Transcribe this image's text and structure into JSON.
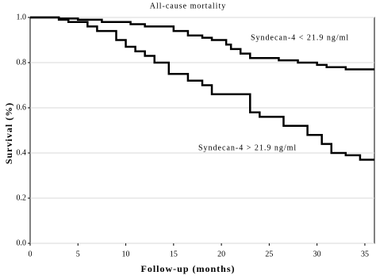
{
  "chart_data": {
    "type": "step",
    "title": "All-cause mortality",
    "xlabel": "Follow-up (months)",
    "ylabel": "Survival (%)",
    "series": [
      {
        "name": "Syndecan-4 < 21.9 ng/ml",
        "color": "#000000",
        "x": [
          0,
          3,
          5,
          7.5,
          10.5,
          12,
          15,
          16.5,
          18,
          19,
          20.5,
          21,
          22,
          23,
          26,
          28,
          30,
          31,
          33,
          36
        ],
        "values": [
          1.0,
          0.995,
          0.99,
          0.98,
          0.97,
          0.96,
          0.94,
          0.92,
          0.91,
          0.9,
          0.88,
          0.86,
          0.84,
          0.82,
          0.81,
          0.8,
          0.79,
          0.78,
          0.77,
          0.77
        ]
      },
      {
        "name": "Syndecan-4 > 21.9 ng/ml",
        "color": "#000000",
        "x": [
          0,
          3,
          4,
          6,
          7,
          9,
          10,
          11,
          12,
          13,
          14.5,
          16.5,
          18,
          19,
          23,
          24,
          26.5,
          29,
          30.5,
          31.5,
          33,
          34.5,
          36
        ],
        "values": [
          1.0,
          0.99,
          0.98,
          0.96,
          0.94,
          0.9,
          0.87,
          0.85,
          0.83,
          0.8,
          0.75,
          0.72,
          0.7,
          0.66,
          0.58,
          0.56,
          0.52,
          0.48,
          0.44,
          0.4,
          0.39,
          0.37,
          0.37
        ]
      }
    ],
    "xlim": [
      0,
      36
    ],
    "xticks": [
      0,
      5,
      10,
      15,
      20,
      25,
      30,
      35
    ],
    "ylim": [
      0,
      1
    ],
    "yticks": [
      {
        "value": 0,
        "label": "0.0"
      },
      0.2,
      0.4,
      0.6,
      0.8,
      {
        "value": 1,
        "label": "1.0"
      }
    ],
    "grid": true
  }
}
